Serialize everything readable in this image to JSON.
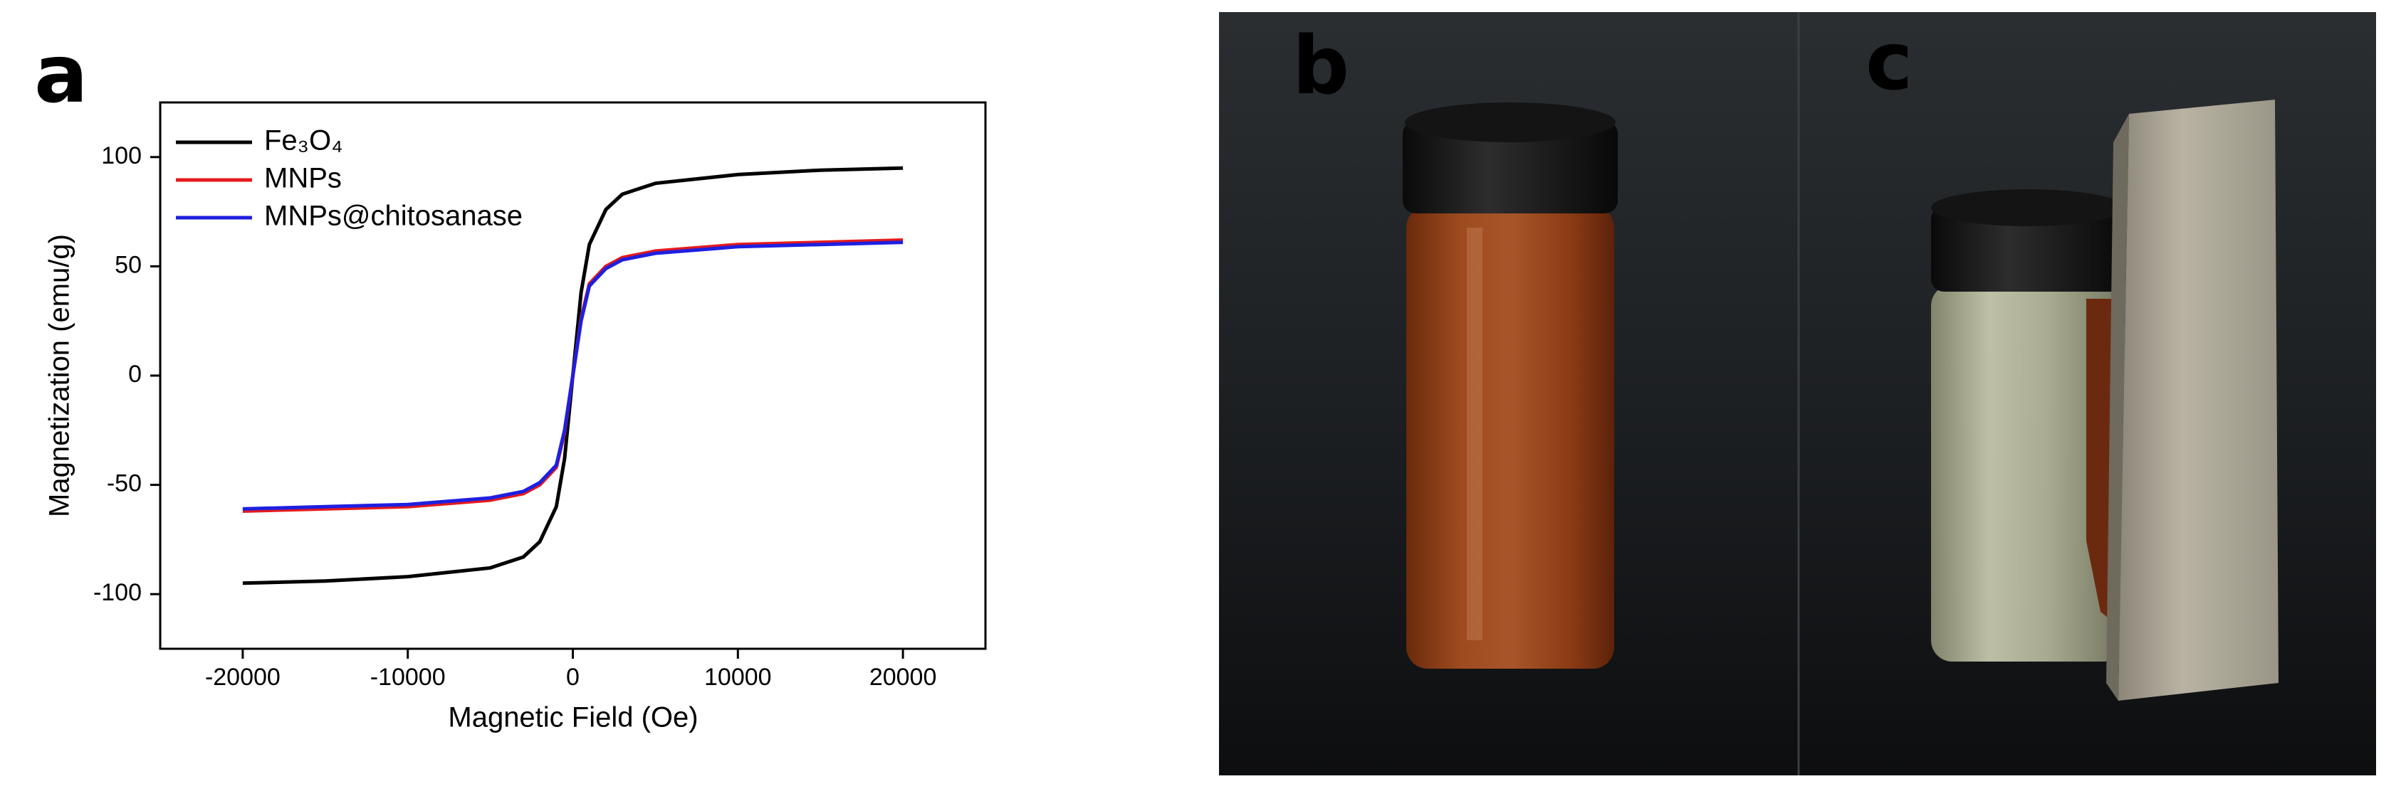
{
  "panel_labels": [
    "a",
    "b",
    "c"
  ],
  "chart_data": {
    "type": "line",
    "x_label": "Magnetic Field (Oe)",
    "y_label": "Magnetization (emu/g)",
    "x": [
      -20000,
      -15000,
      -10000,
      -5000,
      -3000,
      -2000,
      -1000,
      -500,
      0,
      500,
      1000,
      2000,
      3000,
      5000,
      10000,
      15000,
      20000
    ],
    "series": [
      {
        "name": "Fe₃O₄",
        "color": "#000000",
        "values": [
          -95,
          -94,
          -92,
          -88,
          -83,
          -76,
          -60,
          -38,
          0,
          38,
          60,
          76,
          83,
          88,
          92,
          94,
          95
        ]
      },
      {
        "name": "MNPs",
        "color": "#e41a1c",
        "values": [
          -62,
          -61,
          -60,
          -57,
          -54,
          -50,
          -42,
          -26,
          0,
          26,
          42,
          50,
          54,
          57,
          60,
          61,
          62
        ]
      },
      {
        "name": "MNPs@chitosanase",
        "color": "#1f1fe0",
        "values": [
          -61,
          -60,
          -59,
          -56,
          -53,
          -49,
          -41,
          -25,
          0,
          25,
          41,
          49,
          53,
          56,
          59,
          60,
          61
        ]
      }
    ],
    "xlim": [
      -25000,
      25000
    ],
    "xticks": [
      -20000,
      -10000,
      0,
      10000,
      20000
    ],
    "ylim": [
      -125,
      125
    ],
    "yticks": [
      -100,
      -50,
      0,
      50,
      100
    ],
    "grid": false,
    "legend": "upper-left"
  }
}
